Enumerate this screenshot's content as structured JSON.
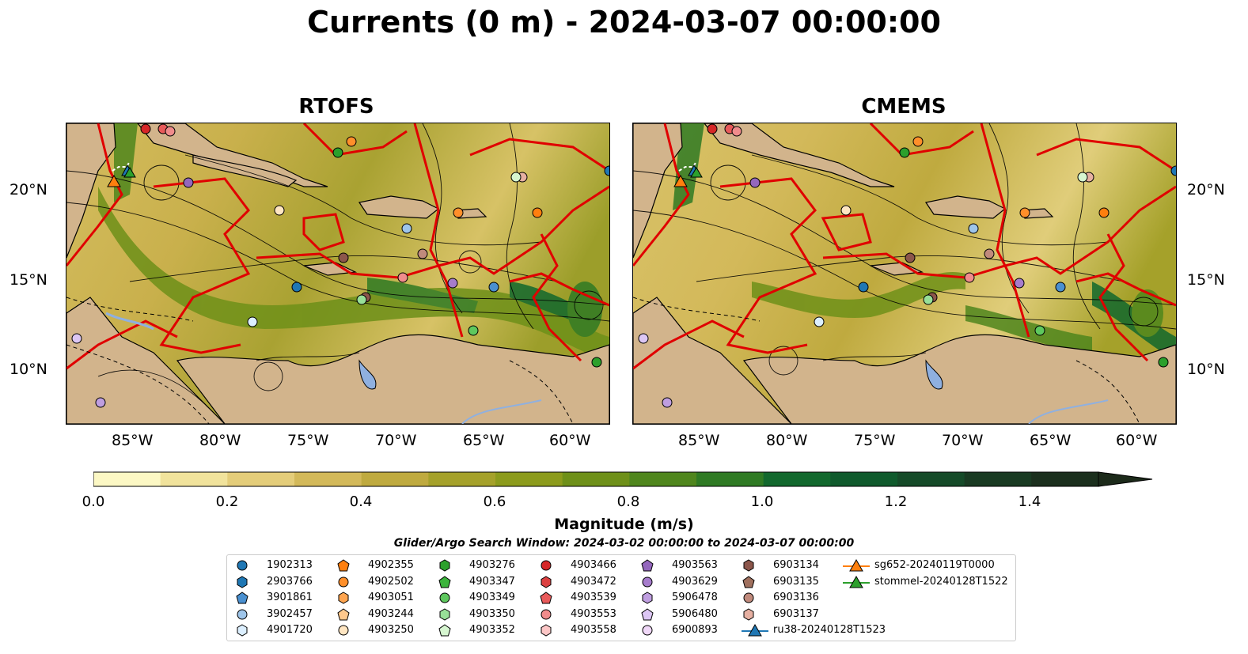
{
  "title": "Currents (0 m) - 2024-03-07 00:00:00",
  "panels": [
    {
      "title": "RTOFS"
    },
    {
      "title": "CMEMS"
    }
  ],
  "axes": {
    "lat_labels": [
      "20°N",
      "15°N",
      "10°N"
    ],
    "lon_labels": [
      "85°W",
      "80°W",
      "75°W",
      "70°W",
      "65°W",
      "60°W"
    ]
  },
  "colorbar": {
    "label": "Magnitude (m/s)",
    "ticks": [
      "0.0",
      "0.2",
      "0.4",
      "0.6",
      "0.8",
      "1.0",
      "1.2",
      "1.4"
    ],
    "colors": [
      "#fcf8c4",
      "#f1e39c",
      "#e4cd7a",
      "#d3b95a",
      "#bfaa3f",
      "#a5a12a",
      "#8c9b1c",
      "#6e9019",
      "#4f861d",
      "#2f7a23",
      "#12682d",
      "#0f5a2c",
      "#154a28",
      "#193a22",
      "#1b2f1d",
      "#1c2a1a"
    ]
  },
  "search_window": "Glider/Argo Search Window: 2024-03-02 00:00:00 to 2024-03-07 00:00:00",
  "legend": [
    {
      "label": "1902313",
      "color": "#1f77b4",
      "shape": "circle"
    },
    {
      "label": "2903766",
      "color": "#1f77b4",
      "shape": "hexagon"
    },
    {
      "label": "3901861",
      "color": "#4a90d0",
      "shape": "pentagon"
    },
    {
      "label": "3902457",
      "color": "#9ec5ea",
      "shape": "circle"
    },
    {
      "label": "4901720",
      "color": "#dcefff",
      "shape": "hexagon"
    },
    {
      "label": "4902355",
      "color": "#ff7f0e",
      "shape": "pentagon"
    },
    {
      "label": "4902502",
      "color": "#ff8f2a",
      "shape": "circle"
    },
    {
      "label": "4903051",
      "color": "#ffa550",
      "shape": "hexagon"
    },
    {
      "label": "4903244",
      "color": "#ffc88c",
      "shape": "pentagon"
    },
    {
      "label": "4903250",
      "color": "#ffe6c2",
      "shape": "circle"
    },
    {
      "label": "4903276",
      "color": "#2ca02c",
      "shape": "hexagon"
    },
    {
      "label": "4903347",
      "color": "#3cb43c",
      "shape": "pentagon"
    },
    {
      "label": "4903349",
      "color": "#5ec85e",
      "shape": "circle"
    },
    {
      "label": "4903350",
      "color": "#98e098",
      "shape": "hexagon"
    },
    {
      "label": "4903352",
      "color": "#d6f6d0",
      "shape": "pentagon"
    },
    {
      "label": "4903466",
      "color": "#d62728",
      "shape": "circle"
    },
    {
      "label": "4903472",
      "color": "#dc4040",
      "shape": "hexagon"
    },
    {
      "label": "4903539",
      "color": "#e85a5a",
      "shape": "pentagon"
    },
    {
      "label": "4903553",
      "color": "#f08c8c",
      "shape": "circle"
    },
    {
      "label": "4903558",
      "color": "#fcc6c6",
      "shape": "hexagon"
    },
    {
      "label": "4903563",
      "color": "#9467bd",
      "shape": "pentagon"
    },
    {
      "label": "4903629",
      "color": "#a67ccc",
      "shape": "circle"
    },
    {
      "label": "5906478",
      "color": "#bf9ee0",
      "shape": "hexagon"
    },
    {
      "label": "5906480",
      "color": "#dcc6f4",
      "shape": "pentagon"
    },
    {
      "label": "6900893",
      "color": "#f0d8f8",
      "shape": "circle"
    },
    {
      "label": "6903134",
      "color": "#8c564b",
      "shape": "hexagon"
    },
    {
      "label": "6903135",
      "color": "#a0705e",
      "shape": "pentagon"
    },
    {
      "label": "6903136",
      "color": "#c08a7c",
      "shape": "circle"
    },
    {
      "label": "6903137",
      "color": "#e6b0a2",
      "shape": "hexagon"
    },
    {
      "label": "ru38-20240128T1523",
      "color": "#1f77b4",
      "shape": "triangle-line"
    },
    {
      "label": "sg652-20240119T0000",
      "color": "#ff7f0e",
      "shape": "triangle-line"
    },
    {
      "label": "stommel-20240128T1522",
      "color": "#2ca02c",
      "shape": "triangle-line"
    }
  ]
}
